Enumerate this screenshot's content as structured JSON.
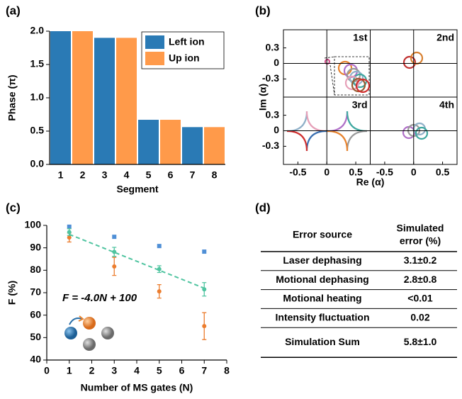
{
  "chart_data": [
    {
      "type": "bar",
      "label": "(a)",
      "xlabel": "Segment",
      "ylabel": "Phase (π)",
      "categories": [
        "1",
        "2",
        "3",
        "4",
        "5",
        "6",
        "7",
        "8"
      ],
      "series": [
        {
          "name": "Left ion",
          "color": "#2a7ab5",
          "values": [
            2.0,
            null,
            1.9,
            null,
            0.67,
            null,
            0.56,
            null
          ]
        },
        {
          "name": "Up ion",
          "color": "#ff9a4a",
          "values": [
            null,
            2.0,
            null,
            1.9,
            null,
            0.67,
            null,
            0.56
          ]
        }
      ],
      "ylim": [
        0,
        2.0
      ],
      "yticks": [
        {
          "value": 0,
          "label": "0.0"
        },
        0.5,
        {
          "value": 1,
          "label": "1.0"
        },
        1.5,
        {
          "value": 2,
          "label": "2.0"
        }
      ],
      "legend": "upper right"
    },
    {
      "type": "phase-space",
      "label": "(b)",
      "xlabel": "Re (α)",
      "ylabel": "Im (α)",
      "quadrants": [
        "1st",
        "2nd",
        "3rd",
        "4th"
      ],
      "xlim": [
        -0.75,
        0.75
      ],
      "ylim": [
        -0.65,
        0.65
      ],
      "xticks": [
        -0.5,
        0,
        0.5
      ],
      "yticks": [
        0.3,
        0,
        -0.3
      ]
    },
    {
      "type": "scatter",
      "label": "(c)",
      "xlabel": "Number of MS gates (N)",
      "ylabel": "F (%)",
      "annotation": "F = -4.0N + 100",
      "x": [
        1,
        3,
        5,
        7
      ],
      "series": [
        {
          "color": "#4f8fd6",
          "marker": "square",
          "values": [
            99.4,
            94.9,
            90.8,
            88.3
          ]
        },
        {
          "color": "#ec7d2e",
          "marker": "circle",
          "values": [
            94.6,
            81.7,
            70.6,
            55.1
          ],
          "errors": [
            2,
            4,
            3,
            6
          ]
        },
        {
          "color": "#4fc4a0",
          "marker": "circle",
          "values": [
            97,
            88.2,
            80.5,
            71.5
          ],
          "errors": [
            1.5,
            2,
            1.5,
            3
          ]
        }
      ],
      "fit": {
        "slope": -4.0,
        "intercept": 100,
        "color": "#4fc4a0"
      },
      "xlim": [
        0,
        8
      ],
      "ylim": [
        40,
        100
      ],
      "xticks": [
        0,
        1,
        2,
        3,
        4,
        5,
        6,
        7,
        8
      ],
      "yticks": [
        40,
        50,
        60,
        70,
        80,
        90,
        100
      ]
    }
  ],
  "table": {
    "label": "(d)",
    "header": [
      "Error source",
      [
        "Simulated",
        "error (%)"
      ]
    ],
    "rows": [
      [
        "Laser dephasing",
        "3.1±0.2"
      ],
      [
        "Motional dephasing",
        "2.8±0.8"
      ],
      [
        "Motional heating",
        "<0.01"
      ],
      [
        "Intensity fluctuation",
        "0.02"
      ],
      [
        "Simulation Sum",
        "5.8±1.0"
      ]
    ]
  }
}
